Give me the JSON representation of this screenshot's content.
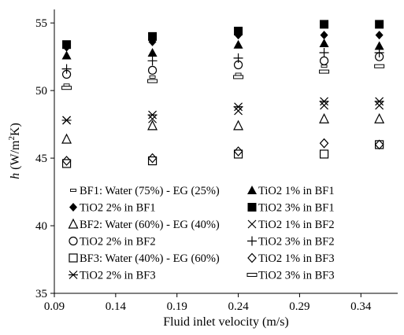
{
  "chart_data": {
    "type": "scatter",
    "title": "",
    "xlabel": "Fluid inlet velocity (m/s)",
    "ylabel_var": "h",
    "ylabel_unit": "(W/m",
    "ylabel_sup": "2",
    "ylabel_tail": "K)",
    "xlim": [
      0.09,
      0.37
    ],
    "ylim": [
      35,
      56
    ],
    "xticks": [
      0.09,
      0.14,
      0.19,
      0.24,
      0.29,
      0.34
    ],
    "xtick_labels": [
      "0.09",
      "0.14",
      "0.19",
      "0.24",
      "0.29",
      "0.34"
    ],
    "yticks": [
      35,
      40,
      45,
      50,
      55
    ],
    "ytick_labels": [
      "35",
      "40",
      "45",
      "50",
      "55"
    ],
    "grid": false,
    "legend_position": "inside-lower",
    "series": [
      {
        "name": "BF1: Water (75%) - EG (25%)",
        "marker": "smalldash",
        "x": [
          0.1,
          0.17,
          0.24,
          0.31,
          0.355
        ],
        "y": [
          50.4,
          51.0,
          51.2,
          51.8,
          51.8
        ]
      },
      {
        "name": "TiO2 1% in BF1",
        "marker": "triangle-filled",
        "x": [
          0.1,
          0.17,
          0.24,
          0.31,
          0.355
        ],
        "y": [
          52.6,
          52.8,
          53.4,
          53.5,
          53.3
        ]
      },
      {
        "name": "TiO2 2% in BF1",
        "marker": "diamond-filled",
        "x": [
          0.1,
          0.17,
          0.24,
          0.31,
          0.355
        ],
        "y": [
          53.2,
          53.6,
          54.1,
          54.1,
          54.1
        ]
      },
      {
        "name": "TiO2 3% in BF1",
        "marker": "square-filled",
        "x": [
          0.1,
          0.17,
          0.24,
          0.31,
          0.355
        ],
        "y": [
          53.4,
          54.0,
          54.4,
          54.9,
          54.9
        ]
      },
      {
        "name": "BF2: Water (60%) - EG (40%)",
        "marker": "triangle-open",
        "x": [
          0.1,
          0.17,
          0.24,
          0.31,
          0.355
        ],
        "y": [
          46.4,
          47.4,
          47.4,
          47.9,
          47.9
        ]
      },
      {
        "name": "TiO2 1% in BF2",
        "marker": "x",
        "x": [
          0.1,
          0.17,
          0.24,
          0.31,
          0.355
        ],
        "y": [
          47.8,
          47.9,
          48.5,
          48.9,
          48.9
        ]
      },
      {
        "name": "TiO2 2% in BF2",
        "marker": "circle-open",
        "x": [
          0.1,
          0.17,
          0.24,
          0.31,
          0.355
        ],
        "y": [
          51.2,
          51.5,
          51.9,
          52.2,
          52.5
        ]
      },
      {
        "name": "TiO2 3% in BF2",
        "marker": "plus",
        "x": [
          0.1,
          0.17,
          0.24,
          0.31,
          0.355
        ],
        "y": [
          51.6,
          52.2,
          52.4,
          52.8,
          52.8
        ]
      },
      {
        "name": "BF3: Water (40%) - EG (60%)",
        "marker": "square-open",
        "x": [
          0.1,
          0.17,
          0.24,
          0.31,
          0.355
        ],
        "y": [
          44.6,
          44.8,
          45.3,
          45.3,
          46.0
        ]
      },
      {
        "name": "TiO2 1% in BF3",
        "marker": "diamond-open",
        "x": [
          0.1,
          0.17,
          0.24,
          0.31,
          0.355
        ],
        "y": [
          44.8,
          45.0,
          45.5,
          46.1,
          46.0
        ]
      },
      {
        "name": "TiO2 2% in BF3",
        "marker": "asterisk",
        "x": [
          0.1,
          0.17,
          0.24,
          0.31,
          0.355
        ],
        "y": [
          47.8,
          48.2,
          48.8,
          49.2,
          49.2
        ]
      },
      {
        "name": "TiO2 3% in BF3",
        "marker": "bigdash",
        "x": [
          0.1,
          0.17,
          0.24,
          0.31,
          0.355
        ],
        "y": [
          50.2,
          50.7,
          51.0,
          51.4,
          51.8
        ]
      }
    ]
  }
}
